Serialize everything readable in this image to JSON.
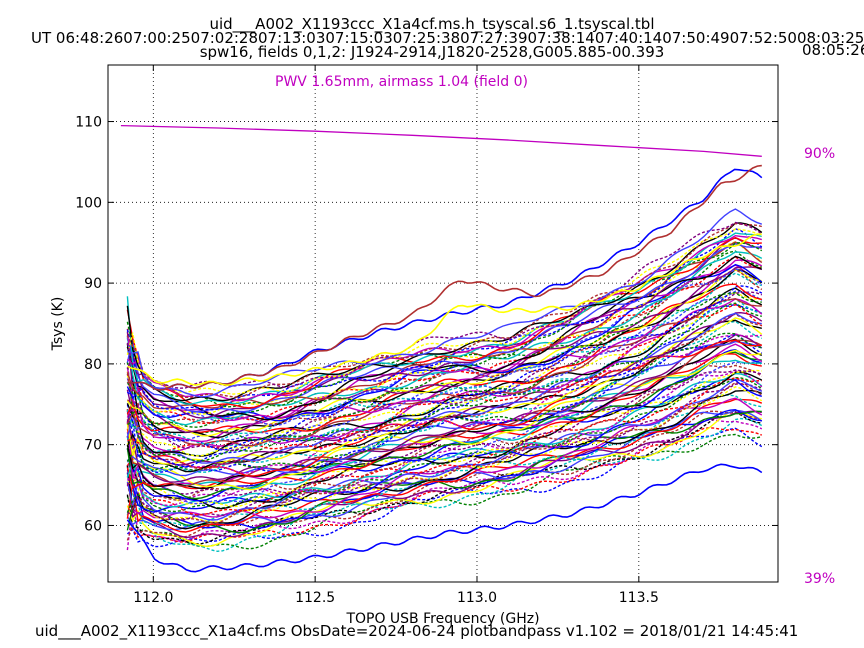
{
  "header": {
    "title": "uid___A002_X1193ccc_X1a4cf.ms.h_tsyscal.s6_1.tsyscal.tbl",
    "ut_line": "UT 06:48:2607:00:2507:02:2807:13:0307:15:0307:25:3807:27:3907:38:1407:40:1407:50:4907:52:5008:03:25",
    "ut_overflow": "08:05:26",
    "spw_line": "spw16,  fields 0,1,2: J1924-2914,J1820-2528,G005.885-00.393"
  },
  "annotations": {
    "pwv": "PWV 1.65mm, airmass 1.04 (field 0)",
    "pct_top": "90%",
    "pct_bottom": "39%",
    "annotation_color": "#c000c0"
  },
  "footer": {
    "text": "uid___A002_X1193ccc_X1a4cf.ms  ObsDate=2024-06-24   plotbandpass v1.102 = 2018/01/21 14:45:41"
  },
  "chart_data": {
    "type": "line",
    "title": "",
    "xlabel": "TOPO USB Frequency (GHz)",
    "ylabel": "Tsys (K)",
    "xlim": [
      111.86,
      113.93
    ],
    "ylim": [
      53,
      117
    ],
    "x_ticks": [
      112.0,
      112.5,
      113.0,
      113.5
    ],
    "x_tick_labels": [
      "112.0",
      "112.5",
      "113.0",
      "113.5"
    ],
    "y_ticks": [
      60,
      70,
      80,
      90,
      100,
      110
    ],
    "y_tick_labels": [
      "60",
      "70",
      "80",
      "90",
      "100",
      "110"
    ],
    "grid": true,
    "atmosphere_curve": {
      "color": "#c000c0",
      "x": [
        111.9,
        112.2,
        112.5,
        112.8,
        113.1,
        113.4,
        113.7,
        113.88
      ],
      "y": [
        109.5,
        109.2,
        108.8,
        108.3,
        107.7,
        107.0,
        106.3,
        105.7
      ]
    },
    "series_colors": [
      "#0000ff",
      "#008000",
      "#ff0000",
      "#00bfbf",
      "#bf00bf",
      "#000000",
      "#ffff00",
      "#b03030",
      "#800080",
      "#4040ff"
    ],
    "notable_series": [
      {
        "color": "#0000ff",
        "x": [
          111.92,
          112.0,
          112.2,
          112.35,
          112.5,
          112.7,
          112.9,
          113.1,
          113.3,
          113.5,
          113.7,
          113.8,
          113.88
        ],
        "y": [
          78.0,
          77.0,
          77.5,
          79.0,
          81.5,
          84.0,
          86.0,
          87.5,
          90.5,
          95.0,
          100.5,
          104.5,
          103.0
        ]
      },
      {
        "color": "#b03030",
        "x": [
          111.92,
          112.0,
          112.2,
          112.4,
          112.6,
          112.8,
          112.95,
          113.05,
          113.2,
          113.4,
          113.6,
          113.75,
          113.88
        ],
        "y": [
          78.0,
          77.0,
          77.5,
          79.5,
          83.0,
          86.0,
          90.5,
          89.5,
          88.5,
          91.5,
          96.5,
          102.0,
          104.5
        ]
      },
      {
        "color": "#ffff00",
        "x": [
          111.92,
          112.0,
          112.2,
          112.4,
          112.6,
          112.8,
          112.95,
          113.1,
          113.3,
          113.5,
          113.7,
          113.88
        ],
        "y": [
          80.0,
          78.0,
          77.5,
          78.5,
          80.0,
          82.0,
          87.5,
          86.5,
          87.0,
          89.5,
          93.5,
          96.0
        ]
      },
      {
        "color": "#0000ff",
        "x": [
          111.92,
          112.0,
          112.1,
          112.3,
          112.5,
          112.7,
          112.9,
          113.1,
          113.3,
          113.5,
          113.7,
          113.8,
          113.88
        ],
        "y": [
          61.0,
          56.0,
          54.5,
          55.0,
          56.0,
          57.5,
          59.0,
          60.0,
          61.5,
          64.0,
          67.0,
          67.5,
          66.5
        ]
      }
    ],
    "band": {
      "x": [
        111.92,
        111.95,
        112.0,
        112.1,
        112.2,
        112.3,
        112.4,
        112.5,
        112.6,
        112.7,
        112.8,
        112.9,
        113.0,
        113.1,
        113.2,
        113.3,
        113.4,
        113.5,
        113.6,
        113.7,
        113.8,
        113.88
      ],
      "low": [
        58.0,
        59.0,
        58.0,
        57.5,
        57.5,
        58.0,
        58.5,
        59.5,
        60.5,
        61.5,
        62.5,
        63.0,
        63.5,
        64.0,
        65.0,
        66.0,
        67.0,
        68.0,
        69.0,
        70.5,
        71.5,
        70.5
      ],
      "high": [
        84.0,
        80.0,
        78.0,
        77.0,
        77.0,
        77.5,
        78.0,
        79.0,
        80.0,
        81.0,
        82.0,
        83.0,
        83.5,
        84.0,
        85.5,
        87.0,
        89.0,
        91.0,
        93.5,
        96.0,
        98.5,
        97.0
      ]
    },
    "series_count": 200
  }
}
